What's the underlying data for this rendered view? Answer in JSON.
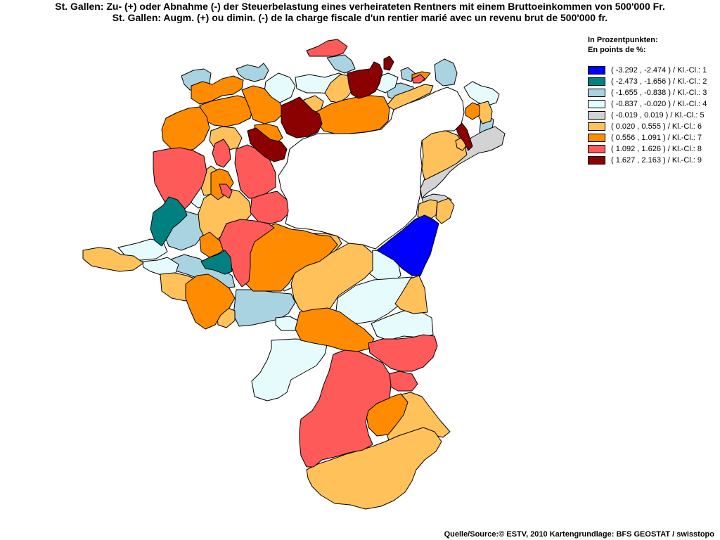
{
  "title_de": "St. Gallen: Zu- (+) oder Abnahme (-) der Steuerbelastung eines verheirateten Rentners mit einem Bruttoeinkommen von 500'000 Fr.",
  "title_fr": "St. Gallen: Augm. (+) ou dimin. (-) de la charge fiscale d'un rentier marié avec un revenu brut de 500'000 fr.",
  "legend": {
    "heading_de": "In Prozentpunkten:",
    "heading_fr": "En points de %:",
    "classes": [
      {
        "label": "( -3.292 , -2.474 ) / Kl.-Cl.: 1",
        "color": "#0000ff"
      },
      {
        "label": "( -2.473 , -1.656 ) / Kl.-Cl.: 2",
        "color": "#008080"
      },
      {
        "label": "( -1.655 , -0.838 ) / Kl.-Cl.: 3",
        "color": "#a9d3e0"
      },
      {
        "label": "( -0.837 , -0.020 ) / Kl.-Cl.: 4",
        "color": "#e6fbfb"
      },
      {
        "label": "( -0.019 , 0.019 ) / Kl.-Cl.: 5",
        "color": "#d3d3d3"
      },
      {
        "label": "( 0.020 , 0.555 ) / Kl.-Cl.: 6",
        "color": "#ffc15a"
      },
      {
        "label": "( 0.556 , 1.091 ) / Kl.-Cl.: 7",
        "color": "#ff8c00"
      },
      {
        "label": "( 1.092 , 1.626 ) / Kl.-Cl.: 8",
        "color": "#ff5a5a"
      },
      {
        "label": "( 1.627 , 2.163 ) / Kl.-Cl.: 9",
        "color": "#8b0000"
      }
    ]
  },
  "source": "Quelle/Source:© ESTV, 2010 Kartengrundlage: BFS GEOSTAT / swisstopo"
}
